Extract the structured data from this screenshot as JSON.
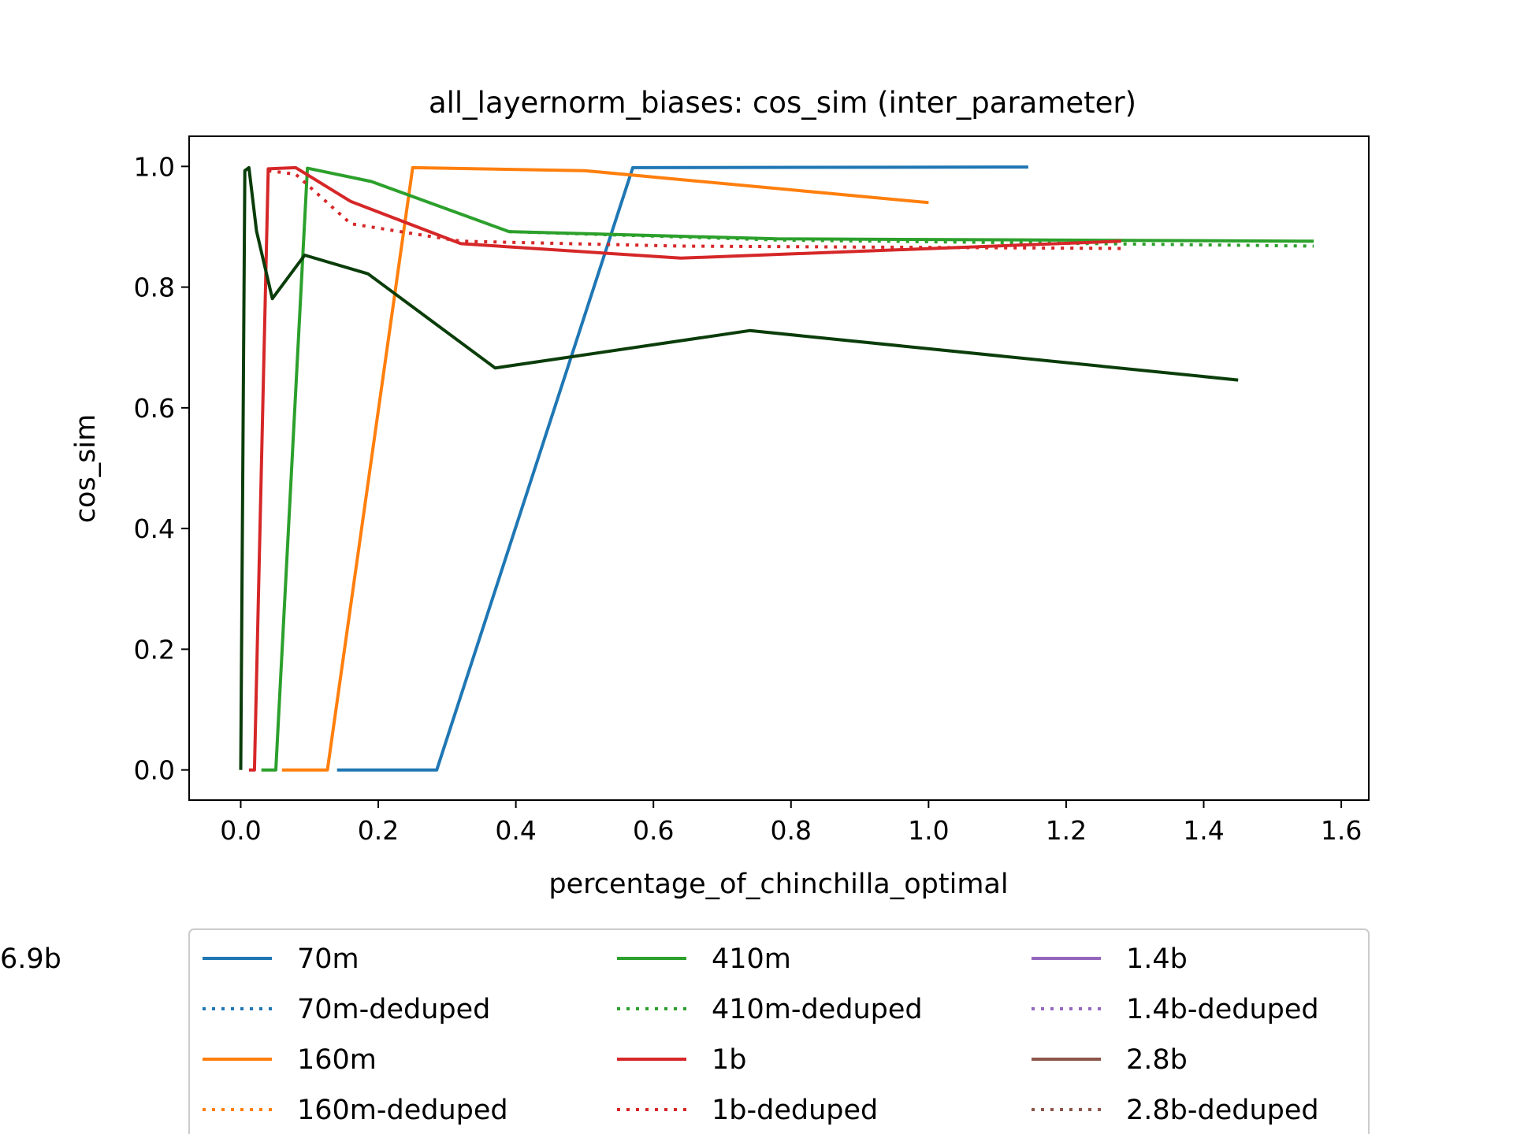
{
  "chart_data": {
    "type": "line",
    "title": "all_layernorm_biases: cos_sim (inter_parameter)",
    "xlabel": "percentage_of_chinchilla_optimal",
    "ylabel": "cos_sim",
    "xlim": [
      -0.075,
      1.64
    ],
    "ylim": [
      -0.05,
      1.05
    ],
    "xticks": [
      0.0,
      0.2,
      0.4,
      0.6,
      0.8,
      1.0,
      1.2,
      1.4,
      1.6
    ],
    "xtick_labels": [
      "0.0",
      "0.2",
      "0.4",
      "0.6",
      "0.8",
      "1.0",
      "1.2",
      "1.4",
      "1.6"
    ],
    "yticks": [
      0.0,
      0.2,
      0.4,
      0.6,
      0.8,
      1.0
    ],
    "ytick_labels": [
      "0.0",
      "0.2",
      "0.4",
      "0.6",
      "0.8",
      "1.0"
    ],
    "grid": false,
    "legend_position": "below plot, 3 columns",
    "series": [
      {
        "name": "70m",
        "color": "#1f77b4",
        "style": "solid",
        "x": [
          0.14,
          0.285,
          0.57,
          1.145
        ],
        "y": [
          0.0,
          0.0,
          0.998,
          0.999
        ]
      },
      {
        "name": "70m-deduped",
        "color": "#1f77b4",
        "style": "dotted",
        "x": [],
        "y": []
      },
      {
        "name": "160m",
        "color": "#ff7f0e",
        "style": "solid",
        "x": [
          0.06,
          0.126,
          0.25,
          0.5,
          1.0
        ],
        "y": [
          0.0,
          0.0,
          0.998,
          0.993,
          0.94
        ]
      },
      {
        "name": "160m-deduped",
        "color": "#ff7f0e",
        "style": "dotted",
        "x": [],
        "y": []
      },
      {
        "name": "410m",
        "color": "#2ca02c",
        "style": "solid",
        "x": [
          0.03,
          0.051,
          0.097,
          0.19,
          0.39,
          0.78,
          1.56
        ],
        "y": [
          0.0,
          0.0,
          0.997,
          0.975,
          0.892,
          0.88,
          0.876
        ]
      },
      {
        "name": "410m-deduped",
        "color": "#2ca02c",
        "style": "dotted",
        "x": [
          0.39,
          0.78,
          1.56
        ],
        "y": [
          0.892,
          0.878,
          0.868
        ]
      },
      {
        "name": "1b",
        "color": "#d62728",
        "style": "solid",
        "x": [
          0.012,
          0.02,
          0.04,
          0.08,
          0.16,
          0.32,
          0.64,
          1.28
        ],
        "y": [
          0.0,
          0.0,
          0.996,
          0.998,
          0.942,
          0.872,
          0.848,
          0.876
        ]
      },
      {
        "name": "1b-deduped",
        "color": "#d62728",
        "style": "dotted",
        "x": [
          0.04,
          0.08,
          0.16,
          0.32,
          0.64,
          1.28
        ],
        "y": [
          0.993,
          0.987,
          0.905,
          0.876,
          0.868,
          0.864
        ]
      },
      {
        "name": "1.4b",
        "color": "#9467bd",
        "style": "solid",
        "x": [],
        "y": []
      },
      {
        "name": "1.4b-deduped",
        "color": "#9467bd",
        "style": "dotted",
        "x": [],
        "y": []
      },
      {
        "name": "2.8b",
        "color": "#8c564b",
        "style": "solid",
        "x": [],
        "y": []
      },
      {
        "name": "2.8b-deduped",
        "color": "#8c564b",
        "style": "dotted",
        "x": [],
        "y": []
      },
      {
        "name": "6.9b",
        "color": "#0a3d0a",
        "style": "solid",
        "x": [
          0.0,
          0.006,
          0.012,
          0.023,
          0.046,
          0.093,
          0.185,
          0.37,
          0.74,
          1.45
        ],
        "y": [
          0.0,
          0.993,
          0.998,
          0.893,
          0.781,
          0.853,
          0.822,
          0.666,
          0.728,
          0.646
        ]
      }
    ]
  }
}
